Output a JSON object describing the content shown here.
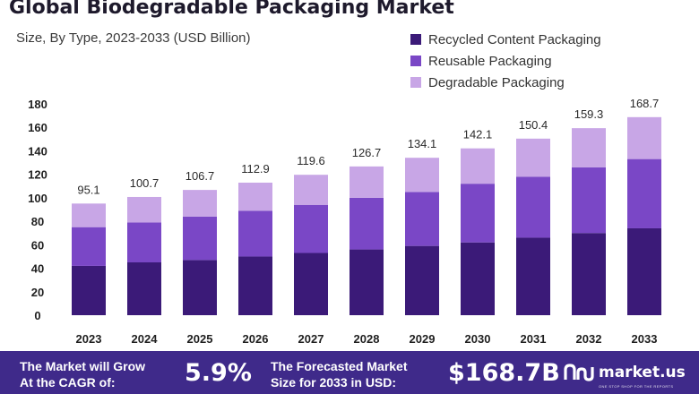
{
  "header": {
    "title": "Global Biodegradable Packaging Market",
    "subtitle": "Size, By Type, 2023-2033 (USD Billion)"
  },
  "chart_data": {
    "type": "bar",
    "stacked": true,
    "title": "Global Biodegradable Packaging Market",
    "subtitle": "Size, By Type, 2023-2033 (USD Billion)",
    "xlabel": "",
    "ylabel": "",
    "ylim": [
      0,
      180
    ],
    "yticks": [
      0,
      20,
      40,
      60,
      80,
      100,
      120,
      140,
      160,
      180
    ],
    "grid": false,
    "legend_position": "top-right",
    "categories": [
      "2023",
      "2024",
      "2025",
      "2026",
      "2027",
      "2028",
      "2029",
      "2030",
      "2031",
      "2032",
      "2033"
    ],
    "series": [
      {
        "name": "Recycled Content Packaging",
        "color": "#3b1a78",
        "values": [
          42,
          45,
          47,
          50,
          53,
          56,
          59,
          62,
          66,
          70,
          74
        ]
      },
      {
        "name": "Reusable Packaging",
        "color": "#7a47c6",
        "values": [
          33,
          34,
          37,
          39,
          41,
          44,
          46,
          50,
          52,
          56,
          59
        ]
      },
      {
        "name": "Degradable Packaging",
        "color": "#c8a6e6",
        "values": [
          20.1,
          21.7,
          22.7,
          23.9,
          25.6,
          26.7,
          29.1,
          30.1,
          32.4,
          33.3,
          35.7
        ]
      }
    ],
    "totals": [
      95.1,
      100.7,
      106.7,
      112.9,
      119.6,
      126.7,
      134.1,
      142.1,
      150.4,
      159.3,
      168.7
    ],
    "total_labels": [
      "95.1",
      "100.7",
      "106.7",
      "112.9",
      "119.6",
      "126.7",
      "134.1",
      "142.1",
      "150.4",
      "159.3",
      "168.7"
    ]
  },
  "banner": {
    "cagr_text_line1": "The Market will Grow",
    "cagr_text_line2": "At the CAGR of:",
    "cagr_value": "5.9%",
    "forecast_text_line1": "The Forecasted Market",
    "forecast_text_line2": "Size for 2033 in USD:",
    "forecast_value": "$168.7B",
    "brand_name": "market.us",
    "brand_tagline": "ONE STOP SHOP FOR THE REPORTS"
  },
  "colors": {
    "banner_bg": "#3f2a8a",
    "recycled": "#3b1a78",
    "reusable": "#7a47c6",
    "degradable": "#c8a6e6"
  }
}
